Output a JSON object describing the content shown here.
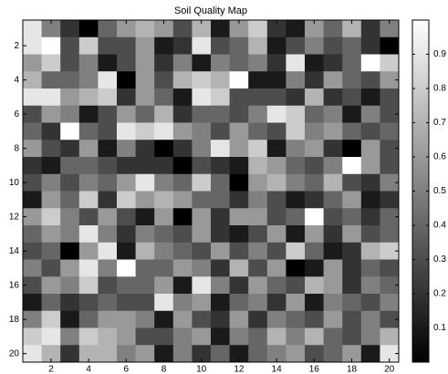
{
  "chart_data": {
    "type": "heatmap",
    "title": "Soil Quality Map",
    "x": [
      1,
      2,
      3,
      4,
      5,
      6,
      7,
      8,
      9,
      10,
      11,
      12,
      13,
      14,
      15,
      16,
      17,
      18,
      19,
      20
    ],
    "y": [
      1,
      2,
      3,
      4,
      5,
      6,
      7,
      8,
      9,
      10,
      11,
      12,
      13,
      14,
      15,
      16,
      17,
      18,
      19,
      20
    ],
    "values": [
      [
        0.9,
        0.5,
        0.2,
        0.0,
        0.4,
        0.6,
        0.7,
        0.6,
        0.3,
        0.7,
        0.1,
        0.6,
        0.8,
        0.2,
        0.1,
        0.6,
        0.4,
        0.7,
        0.2,
        0.5
      ],
      [
        0.9,
        1.0,
        0.3,
        0.8,
        0.3,
        0.3,
        0.6,
        0.1,
        0.2,
        0.9,
        0.3,
        0.4,
        0.7,
        0.1,
        0.3,
        0.5,
        0.3,
        0.4,
        0.2,
        0.0
      ],
      [
        0.6,
        0.8,
        0.3,
        0.5,
        0.1,
        0.3,
        0.6,
        0.2,
        0.5,
        0.1,
        0.5,
        0.4,
        0.5,
        0.2,
        0.9,
        0.1,
        0.2,
        0.4,
        1.0,
        0.8
      ],
      [
        0.7,
        0.4,
        0.4,
        0.5,
        0.9,
        0.0,
        0.6,
        0.3,
        0.7,
        0.8,
        0.7,
        1.0,
        0.1,
        0.1,
        0.5,
        0.2,
        0.6,
        0.4,
        0.3,
        0.6
      ],
      [
        0.9,
        0.9,
        0.6,
        0.7,
        0.8,
        0.2,
        0.6,
        0.4,
        0.1,
        0.9,
        0.8,
        0.3,
        0.3,
        0.3,
        0.2,
        0.7,
        0.2,
        0.3,
        0.1,
        0.3
      ],
      [
        0.3,
        0.6,
        0.5,
        0.1,
        0.3,
        0.6,
        0.4,
        0.7,
        0.2,
        0.4,
        0.4,
        0.3,
        0.5,
        0.9,
        0.8,
        0.4,
        0.5,
        0.1,
        0.5,
        0.3
      ],
      [
        0.4,
        0.2,
        1.0,
        0.4,
        0.3,
        0.9,
        0.8,
        0.9,
        0.6,
        0.5,
        0.3,
        0.6,
        0.4,
        0.3,
        0.8,
        0.5,
        0.6,
        0.4,
        0.3,
        0.4
      ],
      [
        0.6,
        0.3,
        0.2,
        0.6,
        0.1,
        0.5,
        0.2,
        0.0,
        0.2,
        0.5,
        0.9,
        0.6,
        0.8,
        0.1,
        0.5,
        0.6,
        0.2,
        0.0,
        0.6,
        0.3
      ],
      [
        0.2,
        0.1,
        0.4,
        0.4,
        0.3,
        0.2,
        0.2,
        0.2,
        0.0,
        0.3,
        0.2,
        0.1,
        0.7,
        0.6,
        0.4,
        0.3,
        0.5,
        1.0,
        0.6,
        0.3
      ],
      [
        0.3,
        0.5,
        0.3,
        0.5,
        0.4,
        0.6,
        0.9,
        0.5,
        0.4,
        0.8,
        0.4,
        0.0,
        0.6,
        0.7,
        0.5,
        0.4,
        0.7,
        0.3,
        0.2,
        0.5
      ],
      [
        0.1,
        0.6,
        0.4,
        0.8,
        0.2,
        0.8,
        0.6,
        0.7,
        0.6,
        0.4,
        0.4,
        0.2,
        0.5,
        0.3,
        0.1,
        0.2,
        0.4,
        0.6,
        0.1,
        0.2
      ],
      [
        0.6,
        0.8,
        0.5,
        0.3,
        0.6,
        0.3,
        0.1,
        0.6,
        0.0,
        0.6,
        0.2,
        0.6,
        0.6,
        0.3,
        0.4,
        1.0,
        0.3,
        0.4,
        0.2,
        0.4
      ],
      [
        0.4,
        0.6,
        0.5,
        0.9,
        0.5,
        0.2,
        0.5,
        0.4,
        0.3,
        0.6,
        0.2,
        0.1,
        0.3,
        0.6,
        0.1,
        0.6,
        0.2,
        0.6,
        0.3,
        0.4
      ],
      [
        0.3,
        0.4,
        0.0,
        0.6,
        0.9,
        0.1,
        0.7,
        0.5,
        0.4,
        0.3,
        0.6,
        0.3,
        0.5,
        0.3,
        0.8,
        0.4,
        0.1,
        0.2,
        0.7,
        0.8
      ],
      [
        0.5,
        0.3,
        0.6,
        0.9,
        0.5,
        1.0,
        0.4,
        0.4,
        0.6,
        0.5,
        0.2,
        0.7,
        0.3,
        0.6,
        0.0,
        0.1,
        0.6,
        0.2,
        0.4,
        0.3
      ],
      [
        0.3,
        0.6,
        0.5,
        0.8,
        0.3,
        0.4,
        0.4,
        0.6,
        0.1,
        0.9,
        0.5,
        0.2,
        0.6,
        0.4,
        0.3,
        0.7,
        0.6,
        0.2,
        0.5,
        0.4
      ],
      [
        0.1,
        0.4,
        0.2,
        0.3,
        0.4,
        0.3,
        0.3,
        0.9,
        0.5,
        0.6,
        0.1,
        0.4,
        0.5,
        0.2,
        0.6,
        0.1,
        0.5,
        0.4,
        0.3,
        0.5
      ],
      [
        0.5,
        0.8,
        0.1,
        0.4,
        0.6,
        0.6,
        0.5,
        0.1,
        0.6,
        0.3,
        0.2,
        0.6,
        0.2,
        0.5,
        0.4,
        0.3,
        0.6,
        0.3,
        0.5,
        0.3
      ],
      [
        0.8,
        0.9,
        0.5,
        0.8,
        0.7,
        0.6,
        0.3,
        0.3,
        0.5,
        0.6,
        0.1,
        0.5,
        0.4,
        0.7,
        0.5,
        0.7,
        0.4,
        0.3,
        0.5,
        0.7
      ],
      [
        0.9,
        0.7,
        0.2,
        0.7,
        0.7,
        0.5,
        0.6,
        0.1,
        0.5,
        0.2,
        0.4,
        0.1,
        0.4,
        0.5,
        0.6,
        0.3,
        0.4,
        0.6,
        0.1,
        0.9
      ]
    ],
    "xlim": [
      0.5,
      20.5
    ],
    "xticks": [
      2,
      4,
      6,
      8,
      10,
      12,
      14,
      16,
      18,
      20
    ],
    "ylim": [
      20.5,
      0.5
    ],
    "yticks": [
      2,
      4,
      6,
      8,
      10,
      12,
      14,
      16,
      18,
      20
    ],
    "colormap": "gray",
    "clim": [
      0,
      1
    ],
    "cticks": [
      0.1,
      0.2,
      0.3,
      0.4,
      0.5,
      0.6,
      0.7,
      0.8,
      0.9
    ]
  }
}
